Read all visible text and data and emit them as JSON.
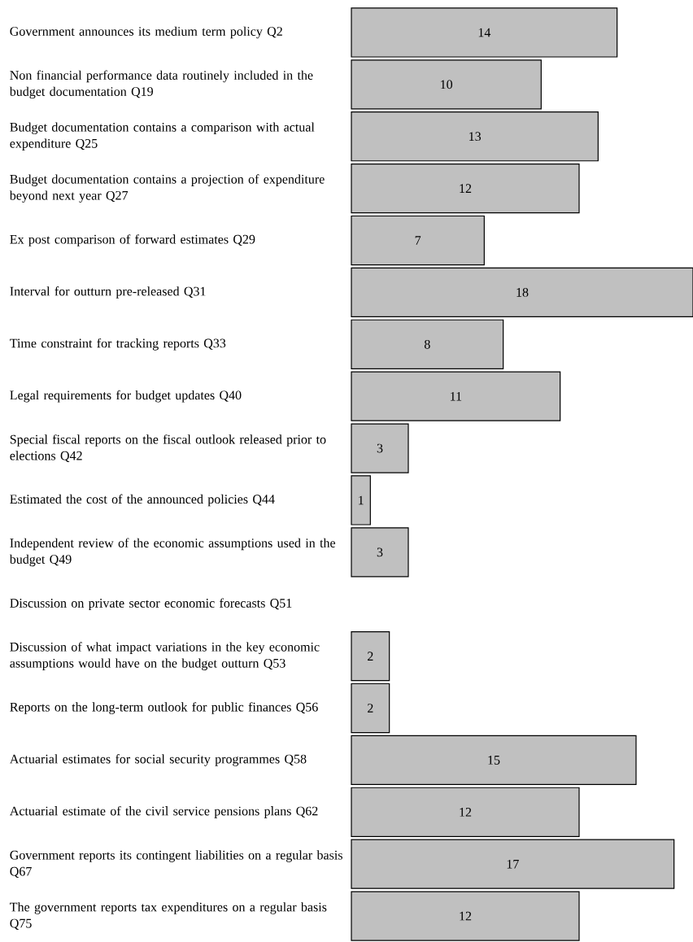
{
  "chart_data": {
    "type": "bar",
    "orientation": "horizontal",
    "data_labels": true,
    "color": "#c0c0c0",
    "categories": [
      "Government announces its medium term policy Q2",
      "Non financial performance data routinely included in the budget documentation Q19",
      "Budget documentation contains a comparison with actual expenditure Q25",
      "Budget documentation contains a projection of expenditure beyond next year Q27",
      "Ex post comparison of forward estimates Q29",
      "Interval for outturn pre-released Q31",
      "Time constraint for tracking reports Q33",
      "Legal requirements for budget updates Q40",
      "Special fiscal reports on the fiscal outlook released prior to elections Q42",
      "Estimated the cost of the announced policies Q44",
      "Independent review of the economic assumptions used in the budget Q49",
      "Discussion on private sector economic forecasts Q51",
      "Discussion of what impact variations in the key economic assumptions would have on the budget outturn Q53",
      "Reports on the long-term outlook for public finances Q56",
      "Actuarial estimates for social security programmes Q58",
      "Actuarial estimate of the civil service pensions plans Q62",
      "Government reports its contingent liabilities on a regular basis Q67",
      "The government reports tax expenditures on a regular basis Q75"
    ],
    "values": [
      14,
      10,
      13,
      12,
      7,
      18,
      8,
      11,
      3,
      1,
      3,
      null,
      2,
      2,
      15,
      12,
      17,
      12
    ]
  }
}
